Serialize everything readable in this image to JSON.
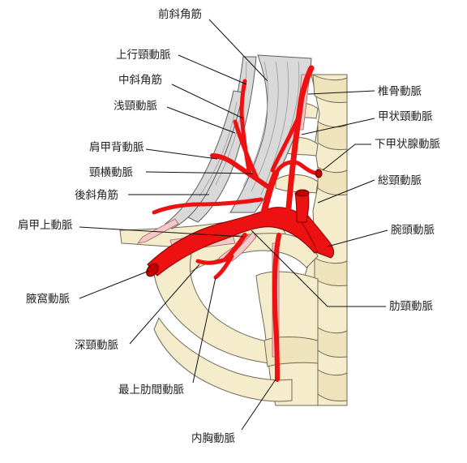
{
  "labels": {
    "anterior_scalene": "前斜角筋",
    "ascending_cervical": "上行頸動脈",
    "middle_scalene": "中斜角筋",
    "superficial_cervical": "浅頸動脈",
    "dorsal_scapular": "肩甲背動脈",
    "transverse_cervical": "頸横動脈",
    "posterior_scalene": "後斜角筋",
    "suprascapular": "肩甲上動脈",
    "axillary": "腋窩動脈",
    "deep_cervical": "深頸動脈",
    "supreme_intercostal": "最上肋間動脈",
    "internal_thoracic": "内胸動脈",
    "vertebral": "椎骨動脈",
    "thyrocervical": "甲状頸動脈",
    "inferior_thyroid": "下甲状腺動脈",
    "common_carotid": "総頸動脈",
    "brachiocephalic": "腕頭動脈",
    "costocervical": "肋頸動脈"
  },
  "colors": {
    "artery": "#ee1111",
    "bone": "#f5eccb",
    "muscle": "#d9d9d9",
    "hidden_artery": "#f6c8c8"
  }
}
